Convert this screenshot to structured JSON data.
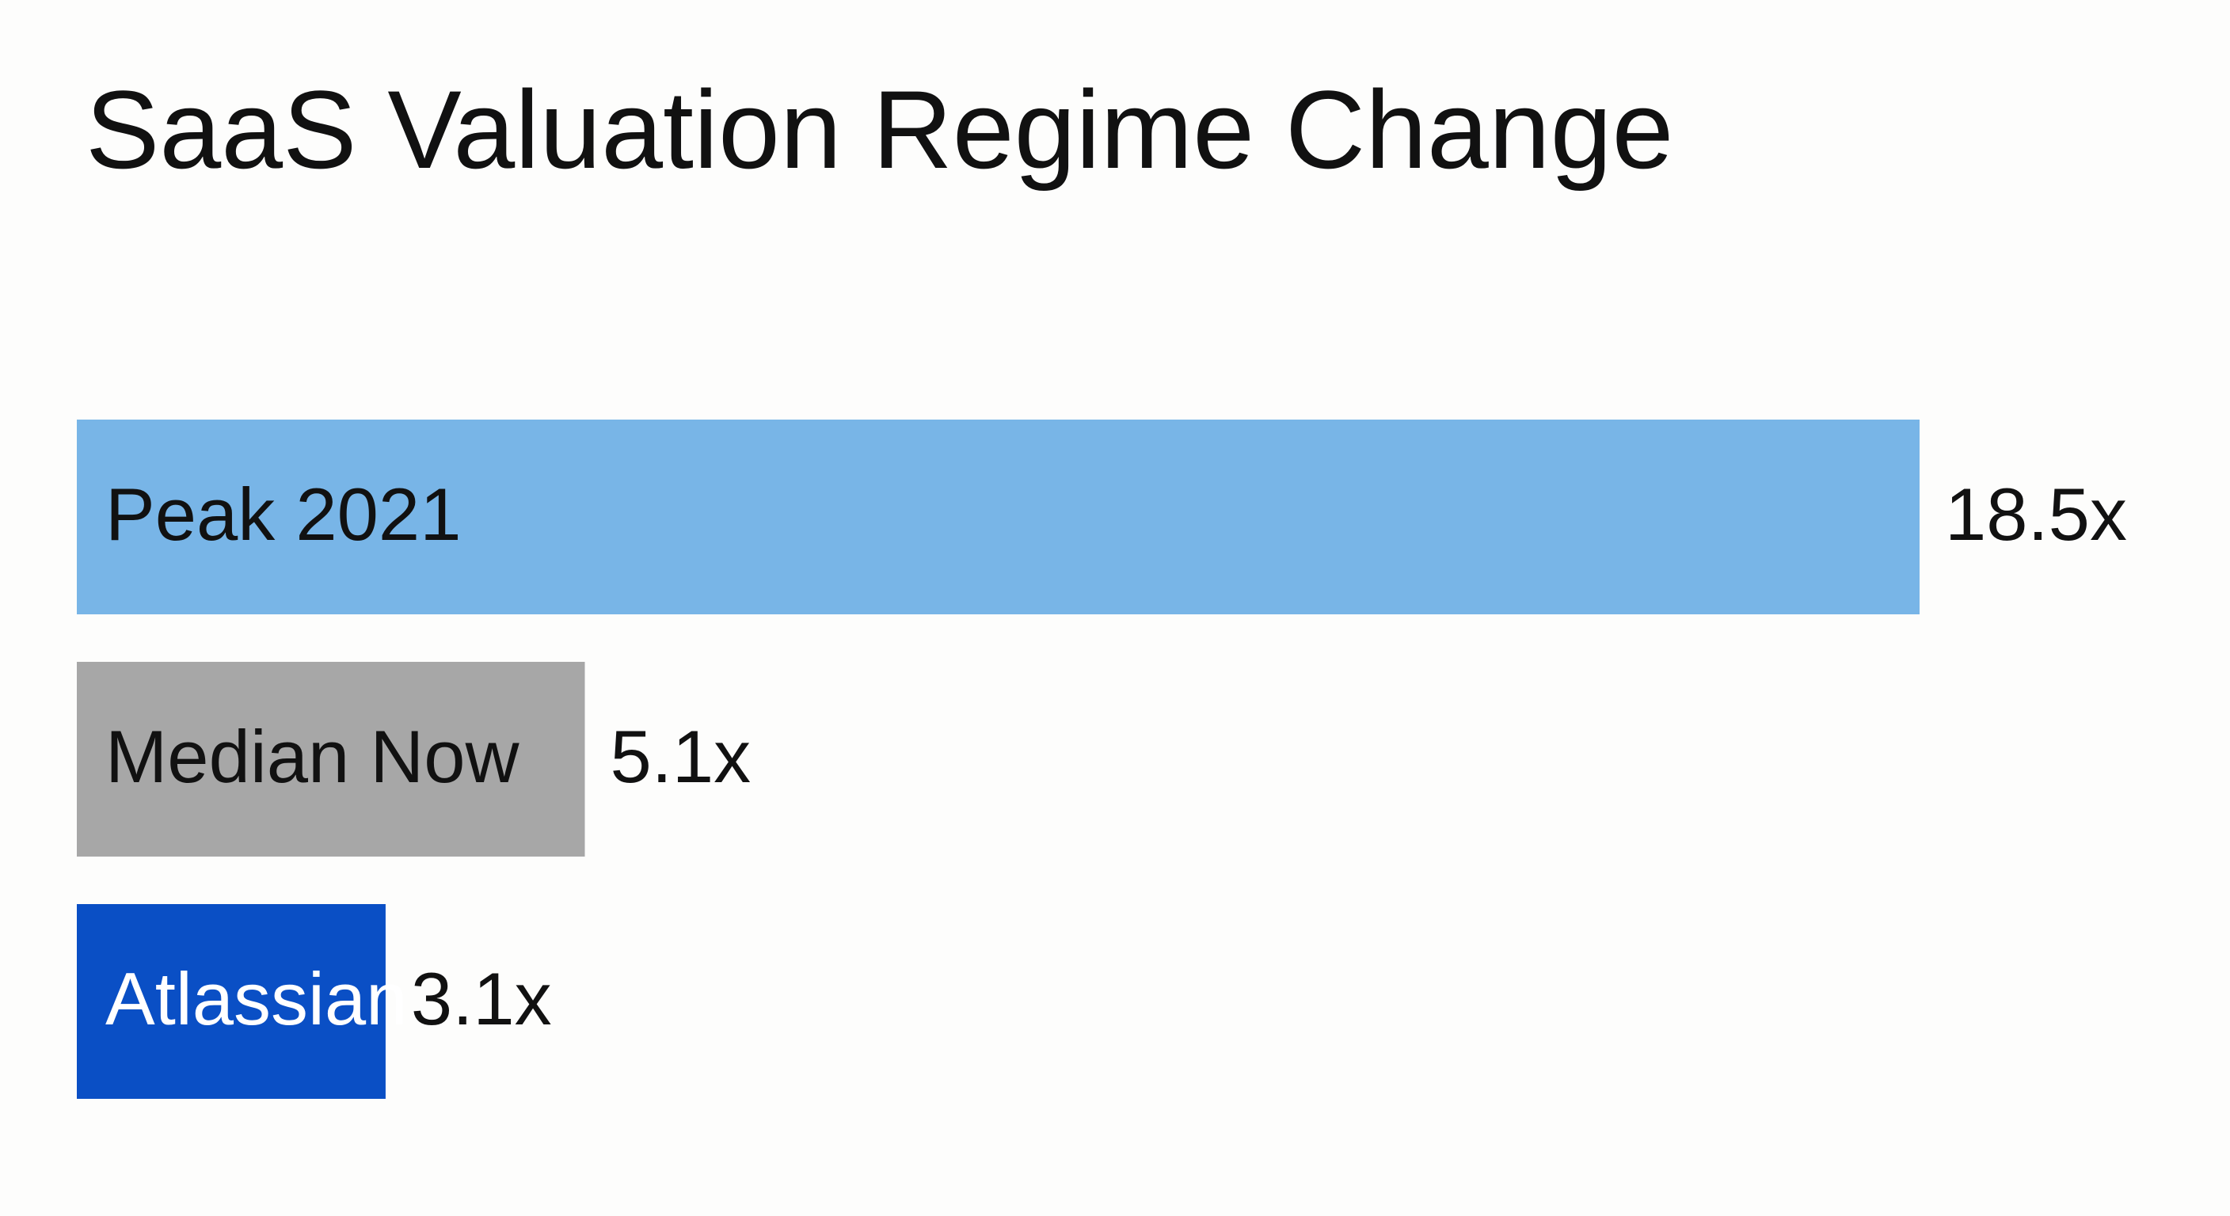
{
  "chart_data": {
    "type": "bar",
    "orientation": "horizontal",
    "title": "SaaS Valuation Regime Change",
    "categories": [
      "Peak 2021",
      "Median Now",
      "Atlassian"
    ],
    "values": [
      18.5,
      5.1,
      3.1
    ],
    "value_labels": [
      "18.5x",
      "5.1x",
      "3.1x"
    ],
    "colors": [
      "#78b5e7",
      "#a7a7a7",
      "#0a4fc5"
    ]
  }
}
